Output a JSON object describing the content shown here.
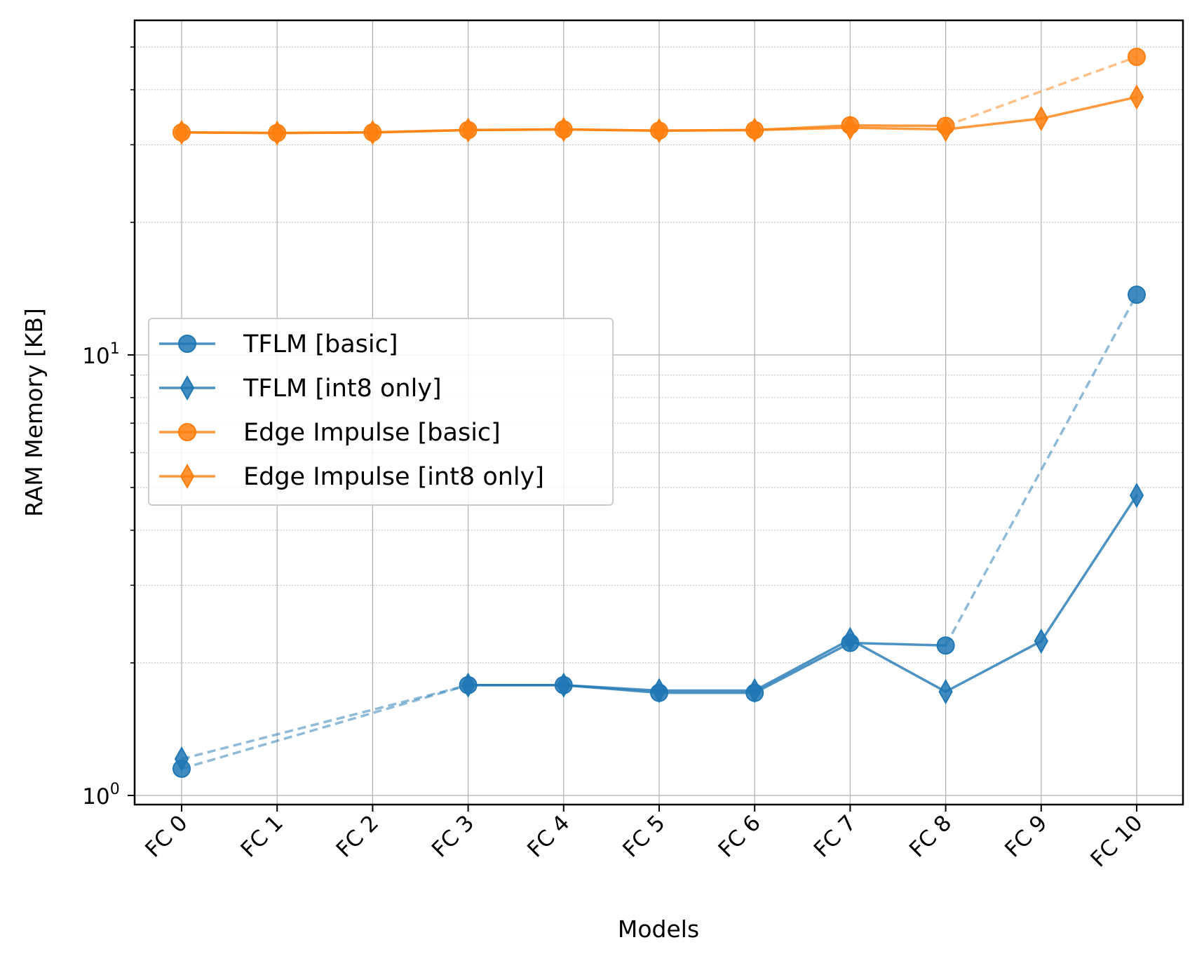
{
  "chart_data": {
    "type": "line",
    "title": "",
    "xlabel": "Models",
    "ylabel": "RAM Memory [KB]",
    "yscale": "log",
    "ylim": [
      0.95,
      65
    ],
    "categories": [
      "FC 0",
      "FC 1",
      "FC 2",
      "FC 3",
      "FC 4",
      "FC 5",
      "FC 6",
      "FC 7",
      "FC 8",
      "FC 9",
      "FC 10"
    ],
    "y_major_ticks": [
      {
        "value": 1,
        "base": "10",
        "exp": "0"
      },
      {
        "value": 10,
        "base": "10",
        "exp": "1"
      }
    ],
    "grid": true,
    "legend_position": "center-left",
    "series": [
      {
        "name": "TFLM [basic]",
        "color": "#1f77b4",
        "marker": "circle",
        "values": [
          1.15,
          null,
          null,
          1.78,
          1.78,
          1.71,
          1.71,
          2.22,
          2.19,
          null,
          13.7
        ]
      },
      {
        "name": "TFLM [int8 only]",
        "color": "#1f77b4",
        "marker": "thin-diamond",
        "values": [
          1.21,
          null,
          null,
          1.78,
          1.78,
          1.73,
          1.73,
          2.26,
          1.72,
          2.24,
          4.8
        ]
      },
      {
        "name": "Edge Impulse [basic]",
        "color": "#ff7f0e",
        "marker": "circle",
        "values": [
          32.0,
          31.9,
          32.0,
          32.4,
          32.5,
          32.3,
          32.4,
          33.2,
          33.1,
          null,
          47.5
        ]
      },
      {
        "name": "Edge Impulse [int8 only]",
        "color": "#ff7f0e",
        "marker": "thin-diamond",
        "values": [
          32.0,
          31.9,
          32.0,
          32.4,
          32.5,
          32.3,
          32.4,
          32.8,
          32.5,
          34.4,
          38.5
        ]
      }
    ]
  }
}
